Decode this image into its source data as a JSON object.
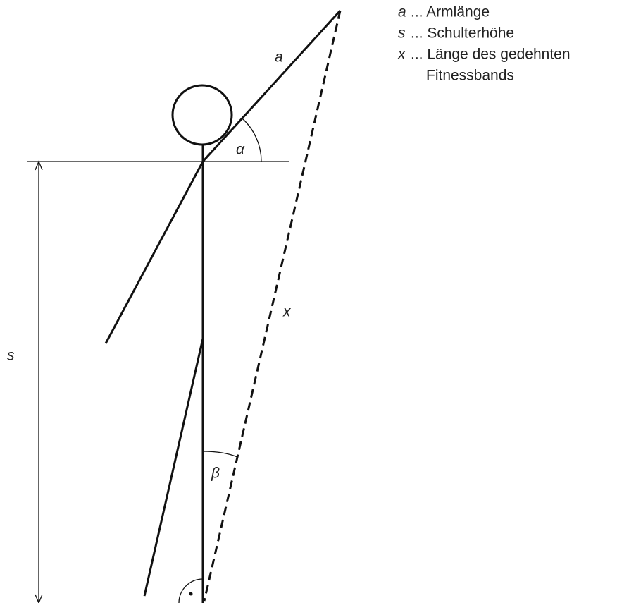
{
  "labels": {
    "a": "a",
    "s": "s",
    "x": "x",
    "alpha": "α",
    "beta": "β"
  },
  "legend": [
    {
      "symbol": "a",
      "lines": [
        "... Armlänge"
      ]
    },
    {
      "symbol": "s",
      "lines": [
        "... Schulterhöhe"
      ]
    },
    {
      "symbol": "x",
      "lines": [
        "... Länge des gedehnten",
        "Fitnessbands"
      ]
    }
  ]
}
